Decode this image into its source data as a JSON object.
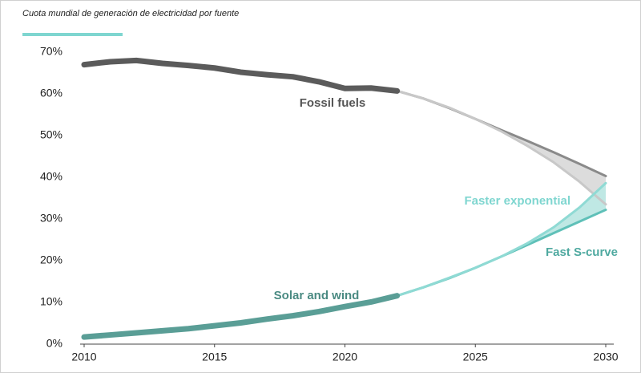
{
  "chart_data": {
    "type": "line",
    "title": "Cuota mundial de generación de electricidad por fuente",
    "x": [
      2010,
      2011,
      2012,
      2013,
      2014,
      2015,
      2016,
      2017,
      2018,
      2019,
      2020,
      2021,
      2022,
      2023,
      2024,
      2025,
      2026,
      2027,
      2028,
      2029,
      2030
    ],
    "series": [
      {
        "name": "Fossil fuels",
        "color": "#5b5b5b",
        "label_color": "#555555",
        "values": [
          67.0,
          67.7,
          68.0,
          67.3,
          66.8,
          66.2,
          65.2,
          64.6,
          64.1,
          62.9,
          61.3,
          61.4,
          60.7,
          null,
          null,
          null,
          null,
          null,
          null,
          null,
          null
        ]
      },
      {
        "name": "Solar and wind",
        "color": "#5a9e96",
        "label_color": "#4a8a82",
        "values": [
          1.7,
          2.2,
          2.7,
          3.2,
          3.7,
          4.4,
          5.1,
          6.0,
          6.8,
          7.8,
          9.0,
          10.1,
          11.6,
          null,
          null,
          null,
          null,
          null,
          null,
          null,
          null
        ]
      }
    ],
    "projections": [
      {
        "name": "Fast S-curve",
        "fossil_color": "#8a8a8a",
        "solar_color": "#5fc0b8",
        "label_color": "#4fa9a0",
        "fossil": [
          null,
          null,
          null,
          null,
          null,
          null,
          null,
          null,
          null,
          null,
          null,
          null,
          60.7,
          58.9,
          56.6,
          54.0,
          51.3,
          48.7,
          46.0,
          43.2,
          40.3
        ],
        "solar": [
          null,
          null,
          null,
          null,
          null,
          null,
          null,
          null,
          null,
          null,
          null,
          null,
          11.6,
          13.6,
          15.8,
          18.3,
          21.0,
          23.8,
          26.6,
          29.4,
          32.2
        ]
      },
      {
        "name": "Faster exponential",
        "fossil_color": "#c8c8c8",
        "solar_color": "#8fdad4",
        "label_color": "#7fd6d0",
        "fossil": [
          null,
          null,
          null,
          null,
          null,
          null,
          null,
          null,
          null,
          null,
          null,
          null,
          60.7,
          58.9,
          56.7,
          54.0,
          51.0,
          47.5,
          43.6,
          38.9,
          33.5
        ],
        "solar": [
          null,
          null,
          null,
          null,
          null,
          null,
          null,
          null,
          null,
          null,
          null,
          null,
          11.6,
          13.6,
          15.9,
          18.3,
          21.0,
          24.2,
          28.0,
          32.8,
          38.6
        ]
      }
    ],
    "fossil_band_color": "#dcdcdc",
    "solar_band_color": "#bfe8e4",
    "accent_color": "#7fd6d0",
    "xlim": [
      2010,
      2030
    ],
    "xticks": [
      2010,
      2015,
      2020,
      2025,
      2030
    ],
    "ylim": [
      0,
      70
    ],
    "yticks": [
      {
        "value": 0,
        "label": "0%"
      },
      {
        "value": 10,
        "label": "10%"
      },
      {
        "value": 20,
        "label": "20%"
      },
      {
        "value": 30,
        "label": "30%"
      },
      {
        "value": 40,
        "label": "40%"
      },
      {
        "value": 50,
        "label": "50%"
      },
      {
        "value": 60,
        "label": "60%"
      },
      {
        "value": 70,
        "label": "70%"
      }
    ]
  }
}
